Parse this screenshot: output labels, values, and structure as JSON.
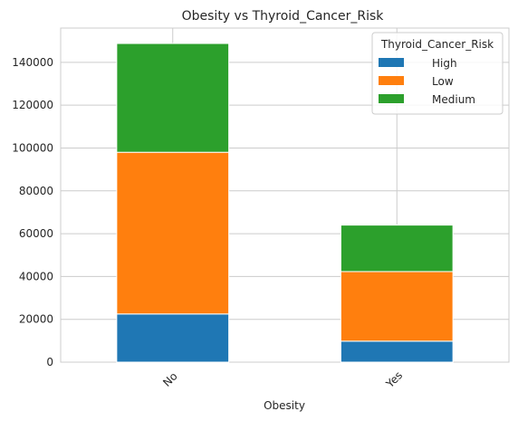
{
  "chart_data": {
    "type": "bar",
    "stacked": true,
    "title": "Obesity vs Thyroid_Cancer_Risk",
    "xlabel": "Obesity",
    "ylabel": "",
    "categories": [
      "No",
      "Yes"
    ],
    "series": [
      {
        "name": "High",
        "values": [
          22500,
          9800
        ],
        "color": "#1f77b4"
      },
      {
        "name": "Low",
        "values": [
          75500,
          32500
        ],
        "color": "#ff7f0e"
      },
      {
        "name": "Medium",
        "values": [
          50800,
          21700
        ],
        "color": "#2ca02c"
      }
    ],
    "ylim": [
      0,
      156000
    ],
    "yticks": [
      0,
      20000,
      40000,
      60000,
      80000,
      100000,
      120000,
      140000
    ],
    "grid": true,
    "legend": {
      "title": "Thyroid_Cancer_Risk",
      "placement": "top-right"
    }
  }
}
